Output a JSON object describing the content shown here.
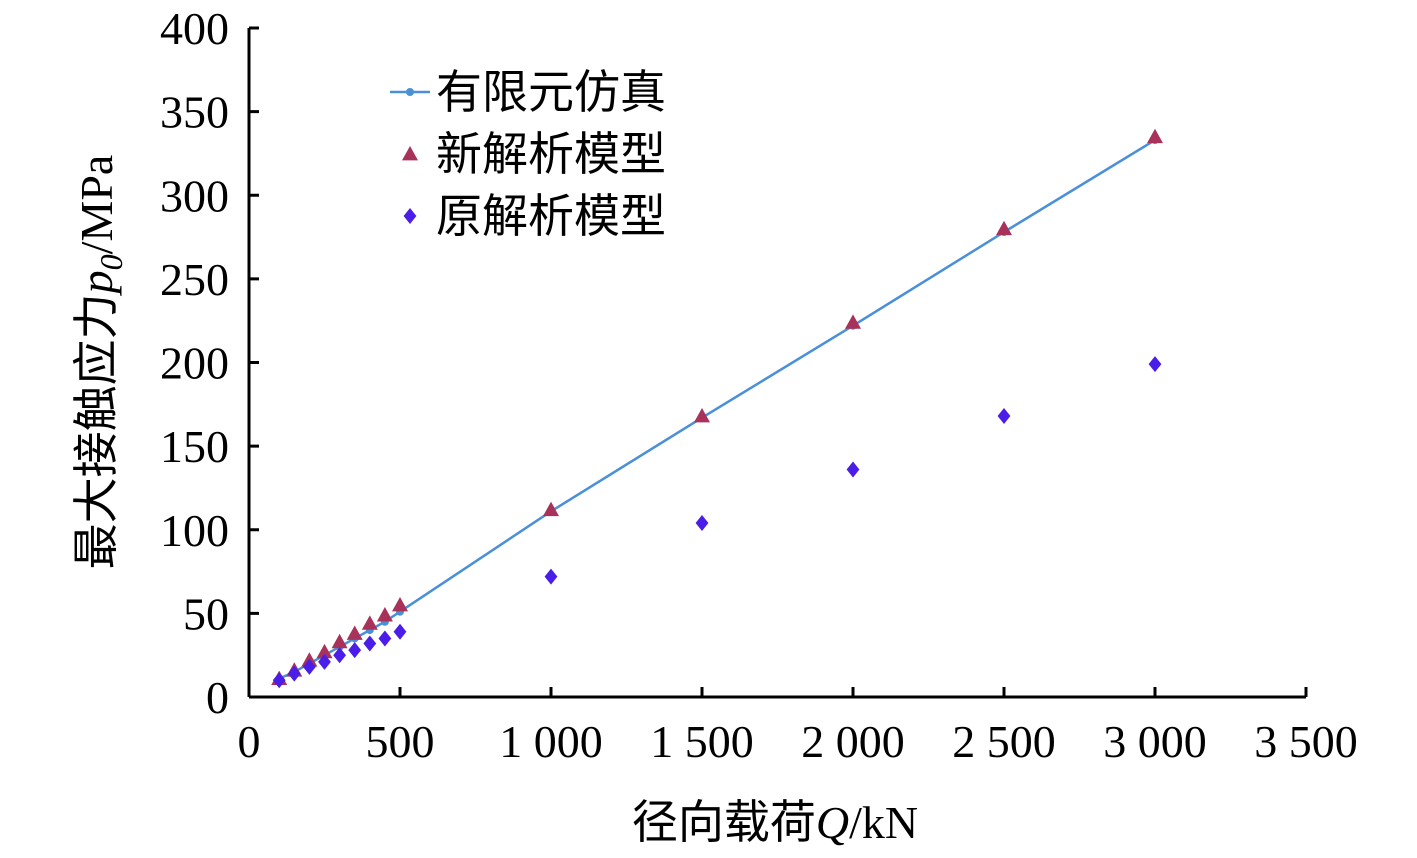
{
  "chart_data": {
    "type": "scatter",
    "title": "",
    "xlabel": "径向载荷Q/kN",
    "ylabel": "最大接触应力p0/MPa",
    "xlim": [
      0,
      3500
    ],
    "ylim": [
      0,
      400
    ],
    "x_ticks": [
      "0",
      "500",
      "1 000",
      "1 500",
      "2 000",
      "2 500",
      "3 000",
      "3 500"
    ],
    "y_ticks": [
      "0",
      "50",
      "100",
      "150",
      "200",
      "250",
      "300",
      "350",
      "400"
    ],
    "grid": false,
    "legend_position": "top-left",
    "series": [
      {
        "name": "有限元仿真",
        "style": "line-with-dot-markers",
        "color": "#4a90d9",
        "x": [
          100,
          150,
          200,
          250,
          300,
          350,
          400,
          450,
          500,
          1000,
          1500,
          2000,
          2500,
          3000
        ],
        "y": [
          11,
          15,
          20,
          25,
          30,
          35,
          40,
          45,
          51,
          111,
          167,
          222,
          278,
          333
        ]
      },
      {
        "name": "新解析模型",
        "style": "triangle-markers",
        "color": "#a8325a",
        "x": [
          100,
          150,
          200,
          250,
          300,
          350,
          400,
          450,
          500,
          1000,
          1500,
          2000,
          2500,
          3000
        ],
        "y": [
          11,
          16,
          22,
          27,
          33,
          38,
          44,
          49,
          55,
          112,
          168,
          224,
          280,
          335
        ]
      },
      {
        "name": "原解析模型",
        "style": "diamond-markers",
        "color": "#4a1ee8",
        "x": [
          100,
          150,
          200,
          250,
          300,
          350,
          400,
          450,
          500,
          1000,
          1500,
          2000,
          2500,
          3000
        ],
        "y": [
          10,
          14,
          18,
          21,
          25,
          28,
          32,
          35,
          39,
          72,
          104,
          136,
          168,
          199
        ]
      }
    ]
  },
  "labels": {
    "ylabel_main": "最大接触应力",
    "ylabel_var": "p",
    "ylabel_sub": "0",
    "ylabel_unit": "/MPa",
    "xlabel_main": "径向载荷",
    "xlabel_var": "Q",
    "xlabel_unit": "/kN"
  }
}
